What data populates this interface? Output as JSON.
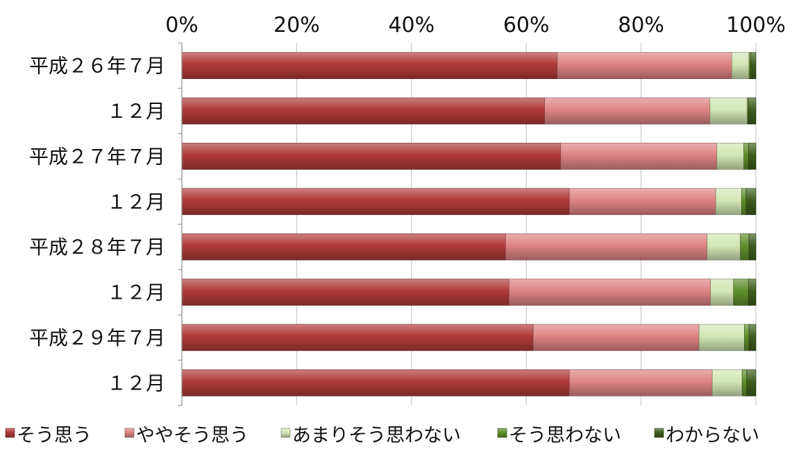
{
  "chart_data": {
    "type": "bar",
    "orientation": "horizontal",
    "stacked": "percent",
    "title": "",
    "xlabel": "",
    "ylabel": "",
    "xlim": [
      0,
      100
    ],
    "x_ticks": [
      "0%",
      "20%",
      "40%",
      "60%",
      "80%",
      "100%"
    ],
    "x_axis_position": "top",
    "grid": true,
    "legend_position": "bottom",
    "categories": [
      "平成２６年７月",
      "１２月",
      "平成２７年７月",
      "１２月",
      "平成２８年７月",
      "１２月",
      "平成２９年７月",
      "１２月"
    ],
    "series": [
      {
        "name": "そう思う",
        "color": "#b03a3a",
        "values": [
          65.4,
          63.2,
          66.0,
          67.5,
          56.4,
          57.0,
          61.2,
          67.5
        ]
      },
      {
        "name": "ややそう思う",
        "color": "#de8484",
        "values": [
          30.4,
          28.8,
          27.2,
          25.5,
          35.1,
          35.1,
          28.9,
          24.9
        ]
      },
      {
        "name": "あまりそう思わない",
        "color": "#d3e6b4",
        "values": [
          3.0,
          6.5,
          4.7,
          4.5,
          5.8,
          4.0,
          7.9,
          5.2
        ]
      },
      {
        "name": "そう思わない",
        "color": "#5f8f2c",
        "values": [
          0.3,
          0.2,
          0.8,
          0.8,
          1.5,
          2.6,
          0.8,
          0.8
        ]
      },
      {
        "name": "わからない",
        "color": "#3f5e1c",
        "values": [
          0.9,
          1.3,
          1.3,
          1.7,
          1.2,
          1.3,
          1.2,
          1.6
        ]
      }
    ]
  }
}
